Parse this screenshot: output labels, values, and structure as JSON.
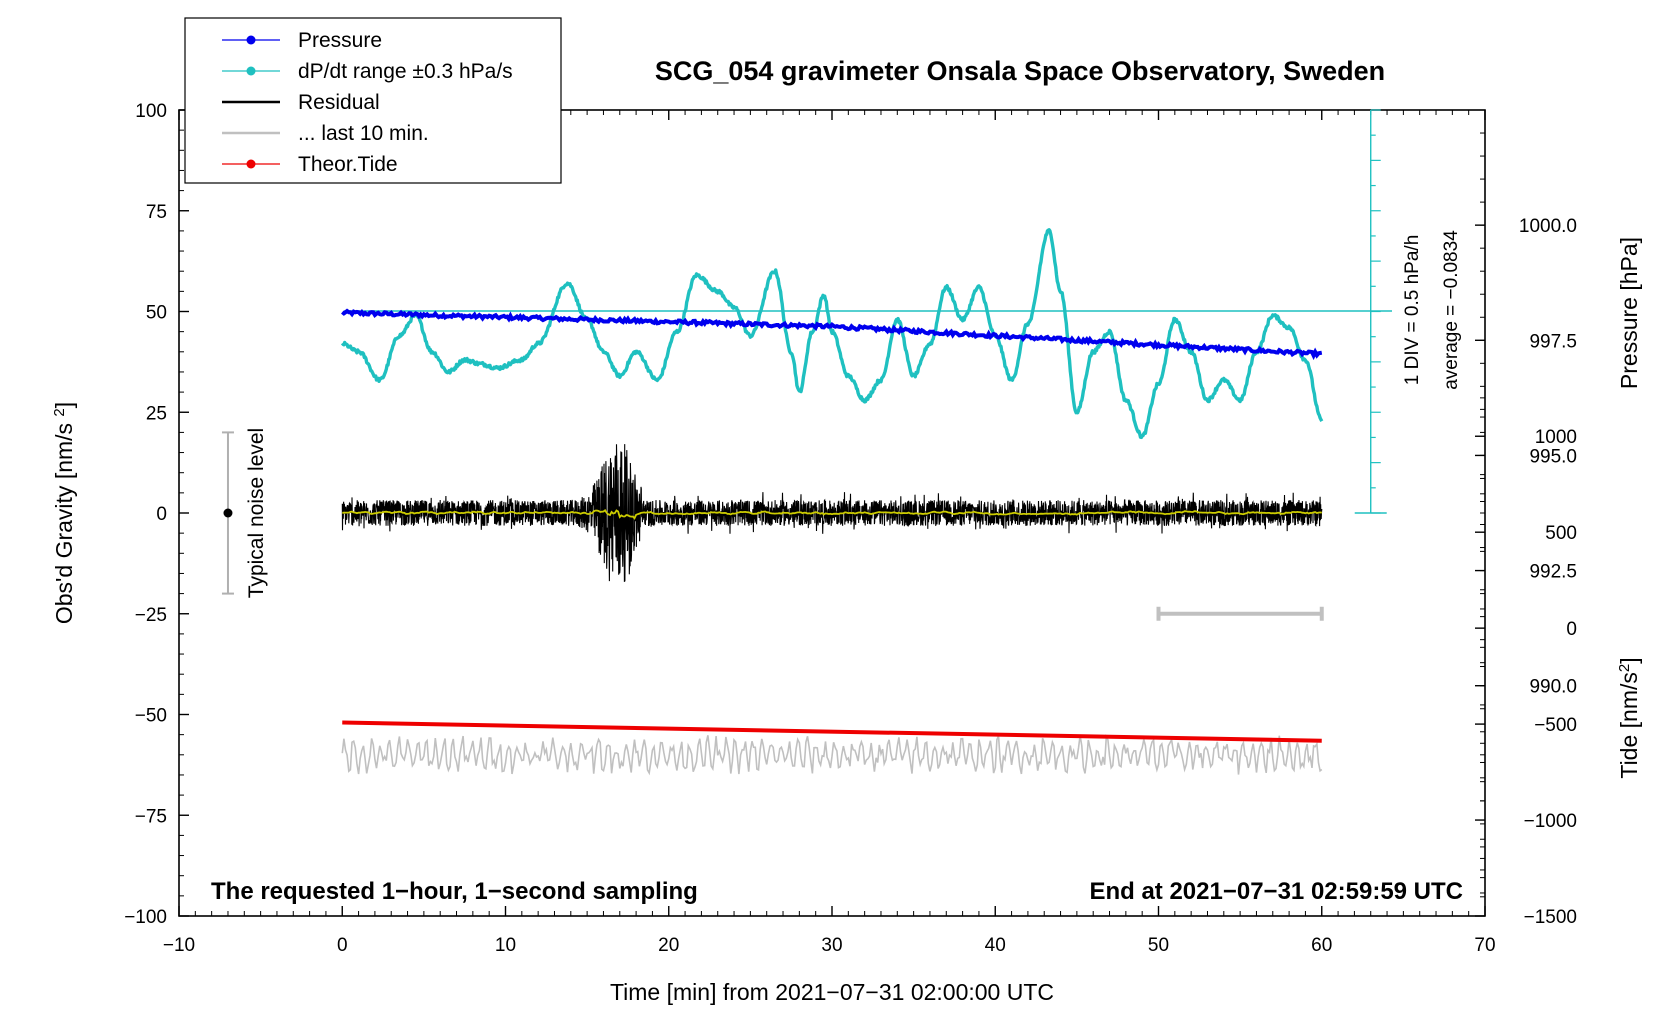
{
  "chart_data": {
    "type": "line",
    "title": "SCG_054 gravimeter Onsala Space Observatory, Sweden",
    "xlabel": "Time [min] from 2021−07−31 02:00:00 UTC",
    "ylabel": "Obs'd Gravity [nm/s²]",
    "ylabel_right_top": "Pressure [hPa]",
    "ylabel_right_bottom": "Tide [nm/s²]",
    "xlim": [
      -10,
      70
    ],
    "ylim": [
      -100,
      100
    ],
    "x_ticks": [
      "−10",
      "0",
      "10",
      "20",
      "30",
      "40",
      "50",
      "60",
      "70"
    ],
    "y_ticks": [
      "100",
      "75",
      "50",
      "25",
      "0",
      "−25",
      "−50",
      "−75",
      "−100"
    ],
    "pressure_ticks": [
      "1000.0",
      "997.5",
      "995.0",
      "992.5",
      "990.0"
    ],
    "tide_ticks": [
      "1000",
      "500",
      "0",
      "−500",
      "−1000",
      "−1500"
    ],
    "legend": [
      {
        "label": "Pressure",
        "color": "#0000ee"
      },
      {
        "label": "dP/dt range ±0.3 hPa/s",
        "color": "#1fc0c0"
      },
      {
        "label": "Residual",
        "color": "#000000"
      },
      {
        "label": "... last 10 min.",
        "color": "#c0c0c0"
      },
      {
        "label": "Theor.Tide",
        "color": "#ee0000"
      }
    ],
    "pressure_hPa": {
      "x": [
        0,
        30,
        60
      ],
      "values": [
        998.1,
        997.8,
        997.2
      ]
    },
    "pressure_rate_curve": {
      "x": [
        0,
        1,
        2.3,
        3.5,
        4.5,
        5.5,
        6.5,
        7.5,
        8.5,
        9.5,
        11,
        12,
        13.8,
        15,
        16,
        17,
        18,
        19.3,
        20.5,
        21.7,
        23,
        24,
        25,
        26.5,
        27.5,
        28,
        28.8,
        29.5,
        30,
        31,
        32,
        33,
        34,
        35,
        36,
        37,
        38,
        39,
        40,
        41,
        42,
        43.3,
        44,
        45,
        46,
        47,
        48,
        49,
        50,
        51,
        52,
        53,
        54,
        55,
        56,
        57,
        58,
        59,
        60
      ],
      "values": [
        42,
        40,
        33,
        44,
        49,
        40,
        35,
        38,
        37,
        36,
        38,
        42,
        57,
        48,
        40,
        34,
        40,
        33,
        45,
        59,
        55,
        51,
        44,
        60,
        40,
        30,
        45,
        54,
        45,
        34,
        28,
        33,
        48,
        34,
        42,
        56,
        48,
        56,
        44,
        33,
        47,
        70,
        55,
        25,
        40,
        45,
        28,
        19,
        32,
        48,
        40,
        28,
        33,
        28,
        40,
        49,
        46,
        38,
        23
      ]
    },
    "residual_range_nm_s2": [
      -5,
      5
    ],
    "disturbance_x_min": [
      14,
      18.5
    ],
    "disturbance_peak_nm_s2": 16,
    "theor_tide_nm_s2": {
      "x": [
        0,
        60
      ],
      "values": [
        -52,
        -56.5
      ]
    },
    "last10_band_nm_s2": [
      -65,
      -55
    ],
    "last10_marker": {
      "x": [
        50,
        60
      ],
      "y": -25
    },
    "noise_level": {
      "x": -7,
      "y": 0,
      "range": [
        -20,
        20
      ],
      "label": "Typical noise level"
    },
    "scale_bar": {
      "div_label": "1 DIV = 0.5 hPa/h",
      "average_label": "average = −0.0834"
    },
    "left_note": "The requested 1−hour, 1−second sampling",
    "right_note": "End at 2021−07−31 02:59:59 UTC"
  }
}
